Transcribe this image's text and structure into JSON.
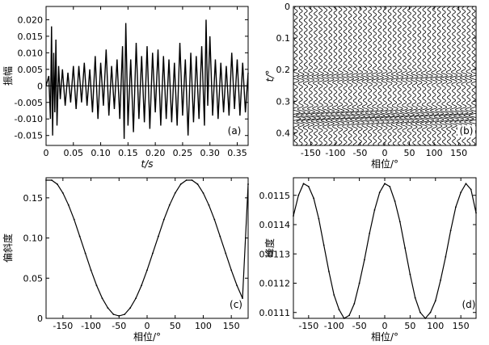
{
  "chart_data": [
    {
      "panel": "(a)",
      "type": "line",
      "xlabel": "t/s",
      "ylabel": "振幅",
      "xlim": [
        0,
        0.37
      ],
      "ylim": [
        -0.018,
        0.024
      ],
      "xticks": [
        "0",
        "0.05",
        "0.10",
        "0.15",
        "0.20",
        "0.25",
        "0.30",
        "0.35"
      ],
      "xtick_values": [
        0,
        0.05,
        0.1,
        0.15,
        0.2,
        0.25,
        0.3,
        0.35
      ],
      "yticks": [
        "0.020",
        "0.015",
        "0.010",
        "0.005",
        "0",
        "-0.005",
        "-0.010",
        "-0.015"
      ],
      "ytick_values": [
        0.02,
        0.015,
        0.01,
        0.005,
        0,
        -0.005,
        -0.01,
        -0.015
      ],
      "x": [
        0,
        0.005,
        0.008,
        0.01,
        0.012,
        0.014,
        0.016,
        0.018,
        0.02,
        0.023,
        0.026,
        0.03,
        0.035,
        0.04,
        0.045,
        0.05,
        0.055,
        0.06,
        0.065,
        0.07,
        0.075,
        0.08,
        0.085,
        0.09,
        0.095,
        0.1,
        0.105,
        0.11,
        0.115,
        0.12,
        0.125,
        0.13,
        0.135,
        0.14,
        0.143,
        0.146,
        0.15,
        0.155,
        0.16,
        0.165,
        0.17,
        0.175,
        0.18,
        0.185,
        0.19,
        0.195,
        0.2,
        0.205,
        0.21,
        0.215,
        0.22,
        0.225,
        0.23,
        0.235,
        0.24,
        0.245,
        0.25,
        0.255,
        0.26,
        0.265,
        0.27,
        0.275,
        0.28,
        0.285,
        0.29,
        0.293,
        0.296,
        0.3,
        0.305,
        0.31,
        0.315,
        0.32,
        0.325,
        0.33,
        0.335,
        0.34,
        0.345,
        0.35,
        0.355,
        0.36,
        0.365,
        0.37
      ],
      "y": [
        0,
        0.003,
        -0.01,
        0.018,
        -0.015,
        0.01,
        -0.008,
        0.014,
        -0.012,
        0.006,
        -0.004,
        0.005,
        -0.006,
        0.004,
        -0.005,
        0.006,
        -0.007,
        0.006,
        -0.005,
        0.007,
        -0.006,
        0.005,
        -0.008,
        0.009,
        -0.01,
        0.007,
        -0.006,
        0.011,
        -0.009,
        0.006,
        -0.007,
        0.008,
        -0.01,
        0.012,
        -0.016,
        0.019,
        -0.012,
        0.008,
        -0.014,
        0.013,
        -0.01,
        0.009,
        -0.011,
        0.012,
        -0.013,
        0.01,
        -0.008,
        0.011,
        -0.012,
        0.009,
        -0.01,
        0.008,
        -0.011,
        0.007,
        -0.012,
        0.013,
        -0.009,
        0.008,
        -0.015,
        0.01,
        -0.011,
        0.009,
        -0.01,
        0.012,
        -0.012,
        0.02,
        -0.006,
        0.015,
        -0.009,
        0.008,
        -0.01,
        0.007,
        -0.008,
        0.006,
        -0.009,
        0.01,
        -0.007,
        0.008,
        -0.009,
        0.007,
        -0.008,
        0.004
      ],
      "annotation": "(a)"
    },
    {
      "panel": "(b)",
      "type": "wiggle",
      "xlabel": "相位/°",
      "ylabel": "t/°",
      "xlim": [
        -185,
        185
      ],
      "ylim": [
        0,
        0.44
      ],
      "xticks": [
        "-150",
        "-100",
        "-50",
        "0",
        "50",
        "100",
        "150"
      ],
      "xtick_values": [
        -150,
        -100,
        -50,
        0,
        50,
        100,
        150
      ],
      "yticks": [
        "0",
        "0.1",
        "0.2",
        "0.3",
        "0.4"
      ],
      "ytick_values": [
        0,
        0.1,
        0.2,
        0.3,
        0.4
      ],
      "trace_count": 37,
      "phase_start": -180,
      "phase_step": 10,
      "annotation": "(b)"
    },
    {
      "panel": "(c)",
      "type": "line",
      "xlabel": "相位/°",
      "ylabel": "偏斜度",
      "xlim": [
        -180,
        180
      ],
      "ylim": [
        0,
        0.175
      ],
      "xticks": [
        "-150",
        "-100",
        "-50",
        "0",
        "50",
        "100",
        "150"
      ],
      "xtick_values": [
        -150,
        -100,
        -50,
        0,
        50,
        100,
        150
      ],
      "yticks": [
        "0.15",
        "0.10",
        "0.05",
        "0"
      ],
      "ytick_values": [
        0.15,
        0.1,
        0.05,
        0
      ],
      "x": [
        -180,
        -170,
        -160,
        -150,
        -140,
        -130,
        -120,
        -110,
        -100,
        -90,
        -80,
        -70,
        -60,
        -50,
        -40,
        -30,
        -20,
        -10,
        0,
        10,
        20,
        30,
        40,
        50,
        60,
        70,
        80,
        90,
        100,
        110,
        120,
        130,
        140,
        150,
        160,
        170,
        180
      ],
      "y": [
        0.172,
        0.172,
        0.167,
        0.156,
        0.141,
        0.123,
        0.102,
        0.081,
        0.06,
        0.041,
        0.025,
        0.013,
        0.005,
        0.003,
        0.005,
        0.013,
        0.025,
        0.041,
        0.06,
        0.081,
        0.102,
        0.123,
        0.141,
        0.156,
        0.167,
        0.172,
        0.172,
        0.167,
        0.156,
        0.141,
        0.123,
        0.102,
        0.081,
        0.06,
        0.041,
        0.025,
        0.167
      ],
      "annotation": "(c)"
    },
    {
      "panel": "(d)",
      "type": "line",
      "xlabel": "相位/°",
      "ylabel": "峰度",
      "xlim": [
        -180,
        180
      ],
      "ylim": [
        0.01108,
        0.01156
      ],
      "xticks": [
        "-150",
        "-100",
        "-50",
        "0",
        "50",
        "100",
        "150"
      ],
      "xtick_values": [
        -150,
        -100,
        -50,
        0,
        50,
        100,
        150
      ],
      "yticks": [
        "0.0115",
        "0.0114",
        "0.0113",
        "0.0112",
        "0.0111"
      ],
      "ytick_values": [
        0.0115,
        0.0114,
        0.0113,
        0.0112,
        0.0111
      ],
      "x": [
        -180,
        -170,
        -160,
        -150,
        -140,
        -130,
        -120,
        -110,
        -100,
        -90,
        -80,
        -70,
        -60,
        -50,
        -40,
        -30,
        -20,
        -10,
        0,
        10,
        20,
        30,
        40,
        50,
        60,
        70,
        80,
        90,
        100,
        110,
        120,
        130,
        140,
        150,
        160,
        170,
        180
      ],
      "y": [
        0.01143,
        0.0115,
        0.01154,
        0.01153,
        0.01149,
        0.01142,
        0.01133,
        0.01124,
        0.01116,
        0.01111,
        0.01108,
        0.01109,
        0.01113,
        0.0112,
        0.01128,
        0.01137,
        0.01145,
        0.01151,
        0.01154,
        0.01153,
        0.01148,
        0.01141,
        0.01132,
        0.01123,
        0.01115,
        0.0111,
        0.01108,
        0.0111,
        0.01114,
        0.01121,
        0.01129,
        0.01138,
        0.01146,
        0.01151,
        0.01154,
        0.01152,
        0.01144
      ],
      "annotation": "(d)"
    }
  ]
}
